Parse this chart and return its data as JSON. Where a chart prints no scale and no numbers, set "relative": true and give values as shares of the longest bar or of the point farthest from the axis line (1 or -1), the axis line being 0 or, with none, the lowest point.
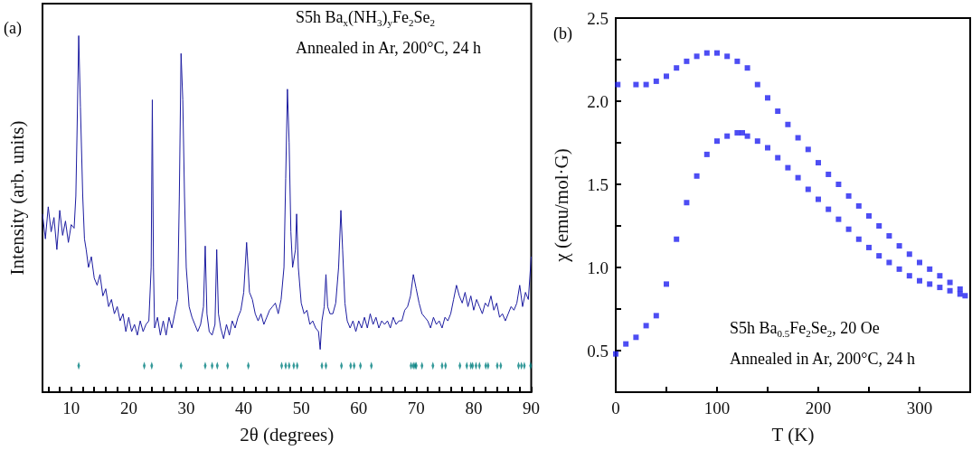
{
  "chart_data": [
    {
      "type": "line",
      "relative": true,
      "xlabel": "2θ (degrees)",
      "ylabel": "Intensity (arb. units)",
      "xlim": [
        5,
        90
      ],
      "xticks": [
        {
          "value": 6,
          "label": null
        },
        {
          "value": 8,
          "label": null
        },
        10,
        {
          "value": 12,
          "label": null
        },
        {
          "value": 14,
          "label": null
        },
        {
          "value": 16,
          "label": null
        },
        {
          "value": 18,
          "label": null
        },
        20,
        {
          "value": 22,
          "label": null
        },
        {
          "value": 24,
          "label": null
        },
        {
          "value": 26,
          "label": null
        },
        {
          "value": 28,
          "label": null
        },
        30,
        {
          "value": 32,
          "label": null
        },
        {
          "value": 34,
          "label": null
        },
        {
          "value": 36,
          "label": null
        },
        {
          "value": 38,
          "label": null
        },
        40,
        {
          "value": 42,
          "label": null
        },
        {
          "value": 44,
          "label": null
        },
        {
          "value": 46,
          "label": null
        },
        {
          "value": 48,
          "label": null
        },
        50,
        {
          "value": 52,
          "label": null
        },
        {
          "value": 54,
          "label": null
        },
        {
          "value": 56,
          "label": null
        },
        {
          "value": 58,
          "label": null
        },
        60,
        {
          "value": 62,
          "label": null
        },
        {
          "value": 64,
          "label": null
        },
        {
          "value": 66,
          "label": null
        },
        {
          "value": 68,
          "label": null
        },
        70,
        {
          "value": 72,
          "label": null
        },
        {
          "value": 74,
          "label": null
        },
        {
          "value": 76,
          "label": null
        },
        {
          "value": 78,
          "label": null
        },
        80,
        {
          "value": 82,
          "label": null
        },
        {
          "value": 84,
          "label": null
        },
        {
          "value": 86,
          "label": null
        },
        {
          "value": 88,
          "label": null
        },
        90
      ],
      "grid": false,
      "annotations": [
        "(a)",
        "S5h Ba$_{x}$(NH$_{3}$)$_{y}$Fe$_{2}$Se$_{2}$",
        "Annealed in Ar, 200°C, 24 h"
      ],
      "series": [
        {
          "color": "#1c1ca0",
          "x": [
            5,
            5.5,
            6,
            6.5,
            7,
            7.5,
            8,
            8.5,
            9,
            9.5,
            10,
            10.5,
            10.8,
            11,
            11.3,
            11.6,
            12,
            12.3,
            12.6,
            13,
            13.5,
            14,
            14.5,
            15,
            15.5,
            16,
            16.5,
            17,
            17.5,
            18,
            18.5,
            19,
            19.5,
            20,
            20.5,
            21,
            21.5,
            22,
            22.5,
            23,
            23.5,
            23.9,
            24.1,
            24.3,
            24.5,
            25,
            25.5,
            26,
            26.5,
            27,
            27.5,
            28,
            28.5,
            28.8,
            29.1,
            29.4,
            29.7,
            30,
            30.5,
            31,
            31.5,
            32,
            32.5,
            33,
            33.3,
            33.6,
            34,
            34.5,
            35,
            35.3,
            35.6,
            36,
            36.5,
            37,
            37.5,
            38,
            38.5,
            39,
            39.5,
            40,
            40.5,
            41,
            41.5,
            42,
            42.5,
            43,
            43.5,
            44,
            44.5,
            45,
            45.5,
            46,
            46.5,
            47,
            47.3,
            47.6,
            47.9,
            48.2,
            48.5,
            49,
            49.2,
            49.5,
            50,
            50.5,
            51,
            51.5,
            52,
            52.5,
            53,
            53.3,
            53.6,
            54,
            54.3,
            54.6,
            55,
            55.5,
            56,
            56.5,
            56.9,
            57.2,
            57.6,
            58,
            58.5,
            59,
            59.5,
            60,
            60.5,
            61,
            61.5,
            62,
            62.5,
            63,
            63.5,
            64,
            64.5,
            65,
            65.5,
            66,
            66.5,
            67,
            67.5,
            68,
            68.5,
            69,
            69.5,
            70,
            70.5,
            71,
            71.5,
            72,
            72.5,
            73,
            73.5,
            74,
            74.5,
            75,
            75.5,
            76,
            76.5,
            77,
            77.5,
            78,
            78.5,
            79,
            79.5,
            80,
            80.5,
            81,
            81.5,
            82,
            82.5,
            83,
            83.5,
            84,
            84.5,
            85,
            85.5,
            86,
            86.5,
            87,
            87.5,
            88,
            88.5,
            89,
            89.5,
            90
          ],
          "values": [
            0.5,
            0.43,
            0.52,
            0.45,
            0.49,
            0.4,
            0.51,
            0.44,
            0.48,
            0.42,
            0.47,
            0.46,
            0.55,
            0.72,
            1,
            0.8,
            0.55,
            0.43,
            0.4,
            0.35,
            0.38,
            0.32,
            0.3,
            0.33,
            0.27,
            0.29,
            0.24,
            0.26,
            0.22,
            0.24,
            0.2,
            0.22,
            0.17,
            0.21,
            0.17,
            0.19,
            0.16,
            0.2,
            0.17,
            0.19,
            0.2,
            0.35,
            0.82,
            0.35,
            0.18,
            0.21,
            0.16,
            0.2,
            0.16,
            0.21,
            0.18,
            0.22,
            0.26,
            0.55,
            0.95,
            0.82,
            0.55,
            0.35,
            0.24,
            0.21,
            0.19,
            0.17,
            0.19,
            0.24,
            0.41,
            0.22,
            0.17,
            0.16,
            0.19,
            0.4,
            0.22,
            0.18,
            0.15,
            0.19,
            0.16,
            0.2,
            0.18,
            0.21,
            0.23,
            0.28,
            0.42,
            0.28,
            0.26,
            0.22,
            0.2,
            0.22,
            0.19,
            0.21,
            0.23,
            0.24,
            0.25,
            0.22,
            0.26,
            0.35,
            0.6,
            0.85,
            0.7,
            0.45,
            0.35,
            0.4,
            0.5,
            0.35,
            0.25,
            0.22,
            0.23,
            0.19,
            0.2,
            0.18,
            0.17,
            0.12,
            0.2,
            0.24,
            0.33,
            0.24,
            0.22,
            0.22,
            0.25,
            0.35,
            0.51,
            0.4,
            0.25,
            0.2,
            0.18,
            0.2,
            0.17,
            0.2,
            0.18,
            0.21,
            0.18,
            0.22,
            0.19,
            0.21,
            0.18,
            0.2,
            0.19,
            0.2,
            0.18,
            0.21,
            0.19,
            0.2,
            0.2,
            0.23,
            0.24,
            0.27,
            0.33,
            0.29,
            0.25,
            0.22,
            0.21,
            0.2,
            0.18,
            0.21,
            0.19,
            0.2,
            0.18,
            0.21,
            0.2,
            0.22,
            0.26,
            0.3,
            0.27,
            0.25,
            0.28,
            0.24,
            0.27,
            0.23,
            0.26,
            0.24,
            0.22,
            0.25,
            0.24,
            0.27,
            0.23,
            0.25,
            0.21,
            0.22,
            0.2,
            0.22,
            0.24,
            0.23,
            0.25,
            0.3,
            0.24,
            0.28,
            0.26,
            0.38
          ]
        },
        {
          "type": "scatter",
          "marker": "diamond",
          "color": "#008080",
          "x": [
            11.3,
            22.7,
            24,
            29.1,
            33.3,
            34.5,
            35.4,
            37.2,
            40.8,
            46.6,
            47.3,
            47.9,
            48.7,
            49.3,
            53.6,
            54.3,
            57,
            58.6,
            59.2,
            60.3,
            62.2,
            69.1,
            69.5,
            69.8,
            70,
            71,
            72.9,
            74.5,
            75.1,
            77.6,
            78.8,
            79.5,
            79.8,
            80.4,
            81,
            82.1,
            82.5,
            84.1,
            84.7,
            87.8,
            88.3,
            88.8,
            89.9
          ],
          "values": [
            0.074,
            0.074,
            0.074,
            0.074,
            0.074,
            0.074,
            0.074,
            0.074,
            0.074,
            0.074,
            0.074,
            0.074,
            0.074,
            0.074,
            0.074,
            0.074,
            0.074,
            0.074,
            0.074,
            0.074,
            0.074,
            0.074,
            0.074,
            0.074,
            0.074,
            0.074,
            0.074,
            0.074,
            0.074,
            0.074,
            0.074,
            0.074,
            0.074,
            0.074,
            0.074,
            0.074,
            0.074,
            0.074,
            0.074,
            0.074,
            0.074,
            0.074,
            0.074
          ]
        }
      ]
    },
    {
      "type": "scatter",
      "xlabel": "T (K)",
      "ylabel": "χ (emu/mol·G)",
      "xlim": [
        0,
        350
      ],
      "ylim": [
        0.25,
        2.5
      ],
      "xticks": [
        0,
        {
          "value": 50,
          "label": null
        },
        100,
        {
          "value": 150,
          "label": null
        },
        200,
        {
          "value": 250,
          "label": null
        },
        300,
        {
          "value": 350,
          "label": null
        }
      ],
      "yticks": [
        0.5,
        {
          "value": 0.75,
          "label": null
        },
        {
          "value": 1,
          "label": "1.0"
        },
        {
          "value": 1.25,
          "label": null
        },
        1.5,
        {
          "value": 1.75,
          "label": null
        },
        {
          "value": 2,
          "label": "2.0"
        },
        {
          "value": 2.25,
          "label": null
        },
        2.5
      ],
      "grid": false,
      "marker": "square",
      "annotations": [
        "(b)",
        "S5h Ba$_{0.5}$Fe$_{2}$Se$_{2}$, 20 Oe",
        "Annealed in Ar, 200°C, 24 h"
      ],
      "series": [
        {
          "color": "#2020f0",
          "x": [
            2,
            20,
            30,
            40,
            50,
            60,
            70,
            80,
            90,
            100,
            110,
            120,
            130,
            140,
            150,
            160,
            170,
            180,
            190,
            200,
            210,
            220,
            230,
            240,
            250,
            260,
            270,
            280,
            290,
            300,
            310,
            320,
            330,
            340
          ],
          "values": [
            2.1,
            2.1,
            2.1,
            2.12,
            2.15,
            2.2,
            2.24,
            2.27,
            2.29,
            2.29,
            2.27,
            2.24,
            2.2,
            2.1,
            2.02,
            1.94,
            1.86,
            1.78,
            1.71,
            1.63,
            1.56,
            1.5,
            1.43,
            1.37,
            1.31,
            1.25,
            1.19,
            1.13,
            1.08,
            1.03,
            0.99,
            0.95,
            0.91,
            0.87
          ]
        },
        {
          "color": "#2020f0",
          "x": [
            0,
            10,
            20,
            30,
            40,
            50,
            60,
            70,
            80,
            90,
            100,
            110,
            120,
            125,
            130,
            140,
            150,
            160,
            170,
            180,
            190,
            200,
            210,
            220,
            230,
            240,
            250,
            260,
            270,
            280,
            290,
            300,
            310,
            320,
            330,
            340,
            345
          ],
          "values": [
            0.48,
            0.54,
            0.58,
            0.65,
            0.71,
            0.9,
            1.17,
            1.39,
            1.55,
            1.68,
            1.76,
            1.79,
            1.81,
            1.81,
            1.79,
            1.76,
            1.72,
            1.66,
            1.6,
            1.54,
            1.47,
            1.41,
            1.35,
            1.29,
            1.23,
            1.17,
            1.12,
            1.07,
            1.03,
            0.99,
            0.95,
            0.92,
            0.9,
            0.88,
            0.86,
            0.84,
            0.83
          ]
        }
      ]
    }
  ]
}
